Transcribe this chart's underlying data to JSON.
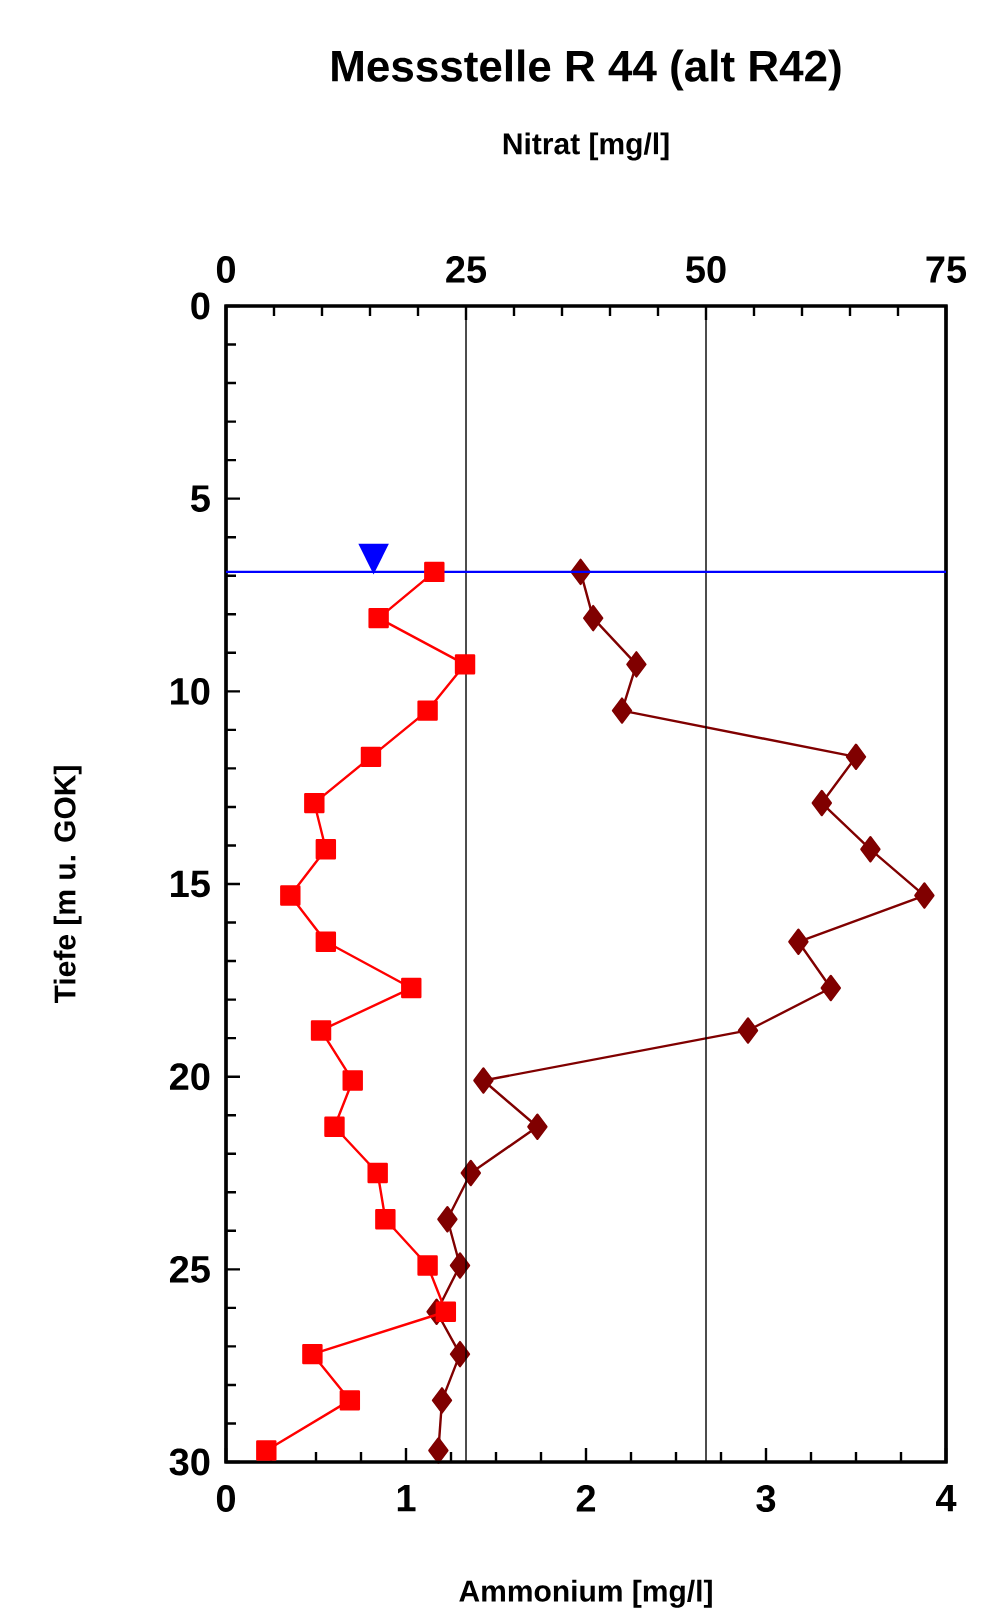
{
  "chart_data": {
    "type": "line",
    "title": "Messstelle R 44 (alt R42)",
    "xlabel": "Ammonium [mg/l]",
    "x2label": "Nitrat [mg/l]",
    "ylabel": "Tiefe [m u. GOK]",
    "xlim": [
      0,
      4
    ],
    "xticks": [
      0,
      1,
      2,
      3,
      4
    ],
    "x2lim": [
      0,
      75
    ],
    "x2ticks": [
      0,
      25,
      50,
      75
    ],
    "ylim": [
      30,
      0
    ],
    "yticks": [
      0,
      5,
      10,
      15,
      20,
      25,
      30
    ],
    "grid": "x2",
    "series": [
      {
        "color": "#800000",
        "marker": "diamond",
        "x": [
          1.97,
          2.04,
          2.28,
          2.2,
          3.5,
          3.31,
          3.58,
          3.88,
          3.18,
          3.36,
          2.9,
          1.43,
          1.73,
          1.36,
          1.23,
          1.3,
          1.17,
          1.3,
          1.2,
          1.18
        ],
        "values": [
          6.9,
          8.1,
          9.3,
          10.5,
          11.7,
          12.9,
          14.1,
          15.3,
          16.5,
          17.7,
          18.8,
          20.1,
          21.3,
          22.5,
          23.7,
          24.9,
          26.1,
          27.2,
          28.4,
          29.7
        ]
      },
      {
        "color": "#ff0000",
        "marker": "square",
        "axis": "x2",
        "x": [
          21.7,
          15.9,
          24.9,
          21.0,
          15.1,
          9.2,
          10.4,
          6.7,
          10.4,
          19.3,
          9.9,
          13.2,
          11.3,
          15.8,
          16.6,
          21.0,
          22.9,
          9.0,
          12.9,
          4.2
        ],
        "values": [
          6.9,
          8.1,
          9.3,
          10.5,
          11.7,
          12.9,
          14.1,
          15.3,
          16.5,
          17.7,
          18.8,
          20.1,
          21.3,
          22.5,
          23.7,
          24.9,
          26.1,
          27.2,
          28.4,
          29.7
        ]
      }
    ],
    "ref_lines": [
      {
        "axis": "y",
        "value": 6.9,
        "color": "#0000ff",
        "label": "▼"
      }
    ]
  }
}
